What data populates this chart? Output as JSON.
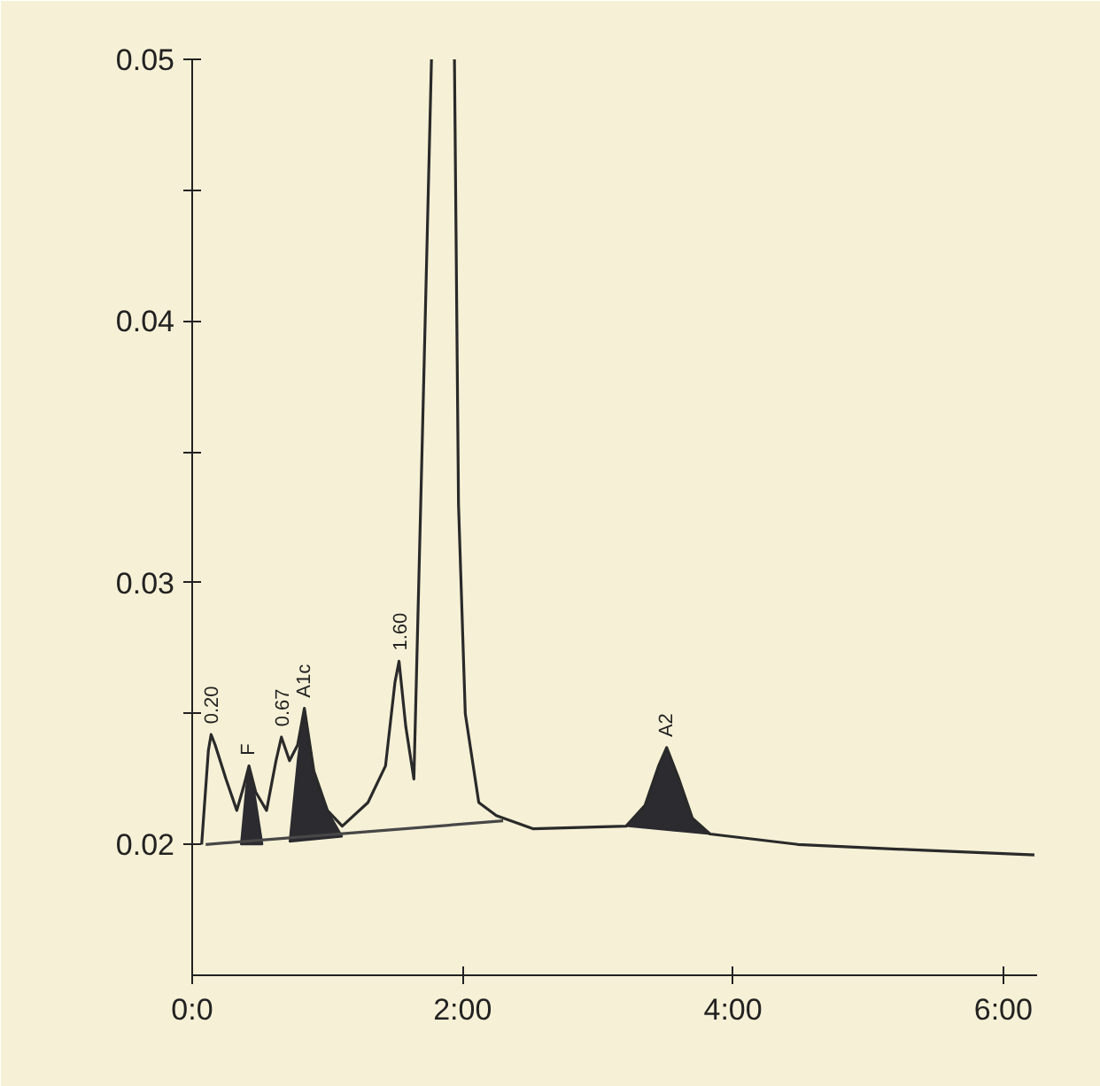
{
  "chart_data": {
    "type": "line",
    "xlim": [
      0,
      6.25
    ],
    "ylim": [
      0.015,
      0.05
    ],
    "xticks": [
      {
        "value": 0,
        "label": "0:0"
      },
      {
        "value": 2,
        "label": "2:00"
      },
      {
        "value": 4,
        "label": "4:00"
      },
      {
        "value": 6,
        "label": "6:00"
      }
    ],
    "yticks": [
      0.02,
      {
        "value": 0.025,
        "label": null
      },
      0.03,
      {
        "value": 0.035,
        "label": null
      },
      0.04,
      {
        "value": 0.045,
        "label": null
      },
      0.05
    ],
    "series": [
      {
        "type": "area",
        "color": "#2b2b30",
        "x": [
          0.36,
          0.4,
          0.42,
          0.46,
          0.52
        ],
        "values": [
          0.02,
          0.0222,
          0.023,
          0.022,
          0.02
        ]
      },
      {
        "type": "area",
        "color": "#2b2b30",
        "x": [
          0.72,
          0.78,
          0.83,
          0.9,
          1.0,
          1.11
        ],
        "values": [
          0.0201,
          0.0232,
          0.0252,
          0.0228,
          0.0213,
          0.0203
        ]
      },
      {
        "type": "area",
        "color": "#2b2b30",
        "x": [
          3.21,
          3.35,
          3.45,
          3.51,
          3.6,
          3.7,
          3.83
        ],
        "values": [
          0.0207,
          0.0215,
          0.023,
          0.0237,
          0.0225,
          0.021,
          0.0204
        ]
      },
      {
        "color": "#2a2a2a",
        "x": [
          0.07,
          0.12,
          0.14,
          0.17,
          0.25,
          0.33,
          0.38,
          0.42,
          0.47,
          0.55,
          0.62,
          0.66,
          0.72,
          0.78,
          0.83,
          0.9,
          1.0,
          1.11,
          1.3,
          1.43,
          1.5,
          1.53,
          1.58,
          1.64,
          1.7,
          1.77,
          1.85,
          1.94,
          1.97,
          2.02,
          2.12,
          2.25,
          2.52,
          3.21,
          3.35,
          3.45,
          3.51,
          3.6,
          3.7,
          3.83,
          4.48,
          5.3,
          6.23
        ],
        "values": [
          0.02,
          0.0236,
          0.0242,
          0.0238,
          0.0225,
          0.0213,
          0.0222,
          0.023,
          0.022,
          0.0213,
          0.0232,
          0.0241,
          0.0232,
          0.0238,
          0.0252,
          0.0228,
          0.0213,
          0.0207,
          0.0216,
          0.023,
          0.0262,
          0.027,
          0.0245,
          0.0225,
          0.035,
          0.05,
          null,
          0.05,
          0.033,
          0.025,
          0.0216,
          0.0211,
          0.0206,
          0.0207,
          0.0215,
          0.023,
          0.0237,
          0.0225,
          0.021,
          0.0204,
          0.02,
          0.0198,
          0.0196
        ]
      },
      {
        "type": "line",
        "color": "#474747",
        "x": [
          0.1,
          2.3
        ],
        "values": [
          0.02,
          0.0209
        ]
      }
    ],
    "annotations": [
      {
        "text": "0.20",
        "x": 0.14,
        "y": 0.0244
      },
      {
        "text": "F",
        "x": 0.42,
        "y": 0.0232
      },
      {
        "text": "0.67",
        "x": 0.66,
        "y": 0.0243
      },
      {
        "text": "A1c",
        "x": 0.83,
        "y": 0.0254
      },
      {
        "text": "1.60",
        "x": 1.53,
        "y": 0.0272
      },
      {
        "text": "A2",
        "x": 3.51,
        "y": 0.0239
      }
    ]
  }
}
